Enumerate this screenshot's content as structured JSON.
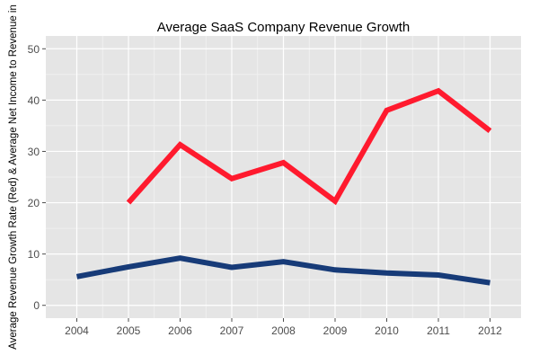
{
  "chart_data": {
    "type": "line",
    "title": "Average SaaS Company Revenue Growth",
    "xlabel": "",
    "ylabel": "Average Revenue Growth Rate (Red) & Average Net Income to Revenue in",
    "x": [
      "2004",
      "2005",
      "2006",
      "2007",
      "2008",
      "2009",
      "2010",
      "2011",
      "2012"
    ],
    "xlim": [
      2003.4,
      2012.6
    ],
    "ylim": [
      -2.5,
      52.5
    ],
    "yticks": [
      0,
      10,
      20,
      30,
      40,
      50
    ],
    "ytick_labels": [
      "0",
      "10",
      "20",
      "30",
      "40",
      "50"
    ],
    "grid": true,
    "legend": "none",
    "series": [
      {
        "color": "#ff1a2e",
        "x": [
          2005,
          2006,
          2007,
          2008,
          2009,
          2010,
          2011,
          2012
        ],
        "values": [
          20.0,
          31.3,
          24.7,
          27.8,
          20.3,
          38.0,
          41.8,
          34.0
        ]
      },
      {
        "color": "#173b78",
        "x": [
          2004,
          2005,
          2006,
          2007,
          2008,
          2009,
          2010,
          2011,
          2012
        ],
        "values": [
          5.6,
          7.5,
          9.2,
          7.4,
          8.5,
          6.9,
          6.3,
          5.9,
          4.4
        ]
      }
    ]
  },
  "colors": {
    "panel_background": "#e5e5e5",
    "grid_major": "#ffffff",
    "grid_minor": "#f2f2f2"
  }
}
